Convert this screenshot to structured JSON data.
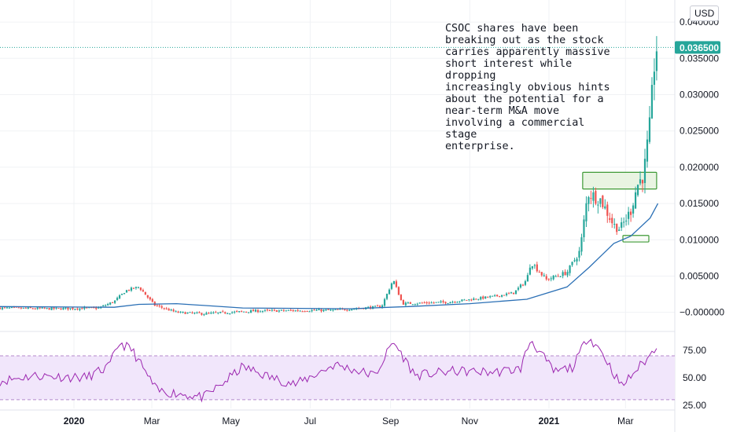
{
  "currency_button": "USD",
  "annotation": {
    "lines": [
      "CSOC shares have been",
      "breaking out as the stock",
      "carries apparently massive",
      "short interest while dropping",
      "increasingly obvious hints",
      "about the potential for a",
      "near-term M&A move",
      "involving a commercial stage",
      "enterprise."
    ]
  },
  "colors": {
    "up": "#26a69a",
    "down": "#ef5350",
    "ma": "#2a6fb5",
    "rsi": "#9c27b0",
    "rsi_band": "#f1e6fb",
    "box_fill": "#e7f3df",
    "box_stroke": "#3f9a37",
    "price_tag": "#26a69a",
    "grid": "#f0f2f5",
    "axis_text": "#131722"
  },
  "chart_data": {
    "type": "candlestick",
    "symbol": "CSOC",
    "currency": "USD",
    "x_range": [
      "2019-11-05",
      "2021-04-08"
    ],
    "x_ticks": [
      {
        "label": "2020",
        "date": "2020-01-01",
        "bold": true
      },
      {
        "label": "Mar",
        "date": "2020-03-01",
        "bold": false
      },
      {
        "label": "May",
        "date": "2020-05-01",
        "bold": false
      },
      {
        "label": "Jul",
        "date": "2020-07-01",
        "bold": false
      },
      {
        "label": "Sep",
        "date": "2020-09-01",
        "bold": false
      },
      {
        "label": "Nov",
        "date": "2020-11-01",
        "bold": false
      },
      {
        "label": "2021",
        "date": "2021-01-01",
        "bold": true
      },
      {
        "label": "Mar",
        "date": "2021-03-01",
        "bold": false
      }
    ],
    "price_axis": {
      "range": [
        -0.0022,
        0.0425
      ],
      "ticks": [
        "0.040000",
        "0.035000",
        "0.030000",
        "0.025000",
        "0.020000",
        "0.015000",
        "0.010000",
        "0.005000",
        "−0.000000"
      ],
      "tick_values": [
        0.04,
        0.035,
        0.03,
        0.025,
        0.02,
        0.015,
        0.01,
        0.005,
        0.0
      ]
    },
    "last_price": {
      "label": "0.036500",
      "value": 0.0365
    },
    "price_path": [
      {
        "date": "2019-11-05",
        "close": 0.0006
      },
      {
        "date": "2019-12-15",
        "close": 0.0005
      },
      {
        "date": "2020-01-20",
        "close": 0.0006
      },
      {
        "date": "2020-02-01",
        "close": 0.0015
      },
      {
        "date": "2020-02-10",
        "close": 0.003
      },
      {
        "date": "2020-02-20",
        "close": 0.0035
      },
      {
        "date": "2020-03-03",
        "close": 0.001
      },
      {
        "date": "2020-03-20",
        "close": 0.0
      },
      {
        "date": "2020-04-10",
        "close": -0.0002
      },
      {
        "date": "2020-05-20",
        "close": 0.0002
      },
      {
        "date": "2020-07-20",
        "close": 0.0003
      },
      {
        "date": "2020-08-25",
        "close": 0.0008
      },
      {
        "date": "2020-09-03",
        "close": 0.0045
      },
      {
        "date": "2020-09-10",
        "close": 0.0012
      },
      {
        "date": "2020-10-15",
        "close": 0.0014
      },
      {
        "date": "2020-11-20",
        "close": 0.0022
      },
      {
        "date": "2020-12-05",
        "close": 0.0027
      },
      {
        "date": "2020-12-15",
        "close": 0.0045
      },
      {
        "date": "2020-12-18",
        "close": 0.007
      },
      {
        "date": "2020-12-30",
        "close": 0.0045
      },
      {
        "date": "2021-01-15",
        "close": 0.0055
      },
      {
        "date": "2021-01-25",
        "close": 0.0085
      },
      {
        "date": "2021-01-31",
        "close": 0.0165
      },
      {
        "date": "2021-02-10",
        "close": 0.0155
      },
      {
        "date": "2021-02-20",
        "close": 0.012
      },
      {
        "date": "2021-02-25",
        "close": 0.0115
      },
      {
        "date": "2021-03-05",
        "close": 0.014
      },
      {
        "date": "2021-03-10",
        "close": 0.0175
      },
      {
        "date": "2021-03-15",
        "close": 0.019
      },
      {
        "date": "2021-03-20",
        "close": 0.026
      },
      {
        "date": "2021-03-23",
        "close": 0.034
      },
      {
        "date": "2021-03-25",
        "close": 0.0365
      }
    ],
    "moving_average": [
      {
        "date": "2019-11-05",
        "value": 0.0008
      },
      {
        "date": "2020-02-01",
        "value": 0.0007
      },
      {
        "date": "2020-02-20",
        "value": 0.0011
      },
      {
        "date": "2020-03-20",
        "value": 0.0012
      },
      {
        "date": "2020-05-10",
        "value": 0.0006
      },
      {
        "date": "2020-08-01",
        "value": 0.0005
      },
      {
        "date": "2020-09-15",
        "value": 0.0008
      },
      {
        "date": "2020-11-01",
        "value": 0.0012
      },
      {
        "date": "2020-12-15",
        "value": 0.0018
      },
      {
        "date": "2021-01-15",
        "value": 0.0035
      },
      {
        "date": "2021-02-01",
        "value": 0.0062
      },
      {
        "date": "2021-02-20",
        "value": 0.0095
      },
      {
        "date": "2021-03-05",
        "value": 0.0105
      },
      {
        "date": "2021-03-20",
        "value": 0.013
      },
      {
        "date": "2021-03-26",
        "value": 0.015
      }
    ],
    "highlight_boxes": [
      {
        "name": "breakout-box",
        "date_from": "2021-01-27",
        "date_to": "2021-03-25",
        "price_low": 0.017,
        "price_high": 0.0193
      },
      {
        "name": "support-box",
        "date_from": "2021-02-27",
        "date_to": "2021-03-19",
        "price_low": 0.0097,
        "price_high": 0.0106
      }
    ],
    "rsi": {
      "axis_range": [
        22,
        90
      ],
      "ticks": [
        "75.00",
        "50.00",
        "25.00"
      ],
      "tick_values": [
        75,
        50,
        25
      ],
      "band": [
        30,
        70
      ],
      "path": [
        {
          "date": "2019-11-05",
          "value": 47
        },
        {
          "date": "2019-12-01",
          "value": 52
        },
        {
          "date": "2020-01-10",
          "value": 50
        },
        {
          "date": "2020-01-28",
          "value": 60
        },
        {
          "date": "2020-02-05",
          "value": 82
        },
        {
          "date": "2020-02-15",
          "value": 75
        },
        {
          "date": "2020-02-25",
          "value": 55
        },
        {
          "date": "2020-03-05",
          "value": 38
        },
        {
          "date": "2020-03-25",
          "value": 35
        },
        {
          "date": "2020-04-10",
          "value": 32
        },
        {
          "date": "2020-04-25",
          "value": 45
        },
        {
          "date": "2020-05-10",
          "value": 60
        },
        {
          "date": "2020-06-01",
          "value": 50
        },
        {
          "date": "2020-06-20",
          "value": 44
        },
        {
          "date": "2020-07-20",
          "value": 62
        },
        {
          "date": "2020-08-20",
          "value": 52
        },
        {
          "date": "2020-09-03",
          "value": 83
        },
        {
          "date": "2020-09-20",
          "value": 52
        },
        {
          "date": "2020-10-20",
          "value": 56
        },
        {
          "date": "2020-11-20",
          "value": 55
        },
        {
          "date": "2020-12-10",
          "value": 58
        },
        {
          "date": "2020-12-18",
          "value": 85
        },
        {
          "date": "2021-01-05",
          "value": 55
        },
        {
          "date": "2021-01-20",
          "value": 60
        },
        {
          "date": "2021-01-31",
          "value": 88
        },
        {
          "date": "2021-02-10",
          "value": 75
        },
        {
          "date": "2021-02-22",
          "value": 50
        },
        {
          "date": "2021-02-26",
          "value": 42
        },
        {
          "date": "2021-03-10",
          "value": 58
        },
        {
          "date": "2021-03-20",
          "value": 70
        },
        {
          "date": "2021-03-25",
          "value": 80
        }
      ]
    }
  }
}
